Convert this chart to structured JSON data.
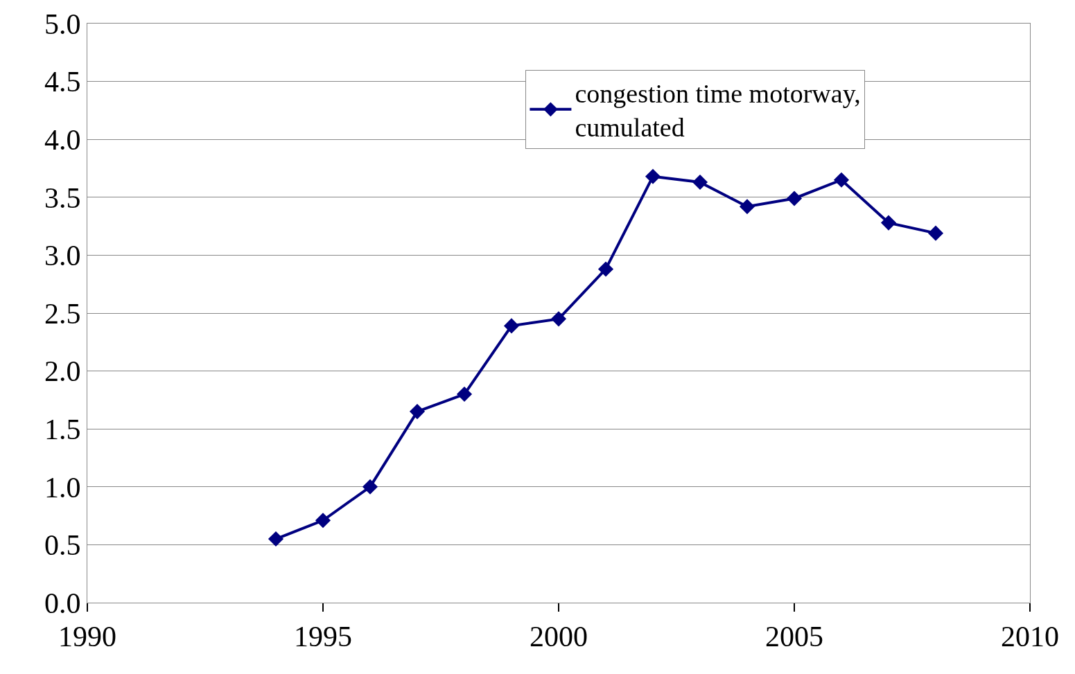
{
  "chart_data": {
    "type": "line",
    "x": [
      1994,
      1995,
      1996,
      1997,
      1998,
      1999,
      2000,
      2001,
      2002,
      2003,
      2004,
      2005,
      2006,
      2007,
      2008
    ],
    "series": [
      {
        "name": "congestion time motorway,\ncumulated",
        "color": "#000080",
        "values": [
          0.55,
          0.71,
          1.0,
          1.65,
          1.8,
          2.39,
          2.45,
          2.88,
          3.68,
          3.63,
          3.42,
          3.49,
          3.65,
          3.28,
          3.19
        ]
      }
    ],
    "xlim": [
      1990,
      2010
    ],
    "xticks": [
      1990,
      1995,
      2000,
      2005,
      2010
    ],
    "ylim": [
      0,
      5
    ],
    "yticks": [
      {
        "value": 0,
        "label": "0.0"
      },
      {
        "value": 0.5,
        "label": "0.5"
      },
      {
        "value": 1,
        "label": "1.0"
      },
      {
        "value": 1.5,
        "label": "1.5"
      },
      {
        "value": 2,
        "label": "2.0"
      },
      {
        "value": 2.5,
        "label": "2.5"
      },
      {
        "value": 3,
        "label": "3.0"
      },
      {
        "value": 3.5,
        "label": "3.5"
      },
      {
        "value": 4,
        "label": "4.0"
      },
      {
        "value": 4.5,
        "label": "4.5"
      },
      {
        "value": 5,
        "label": "5.0"
      }
    ],
    "grid": "y",
    "legend": "top right",
    "marker": "diamond",
    "line_style": "solid"
  }
}
